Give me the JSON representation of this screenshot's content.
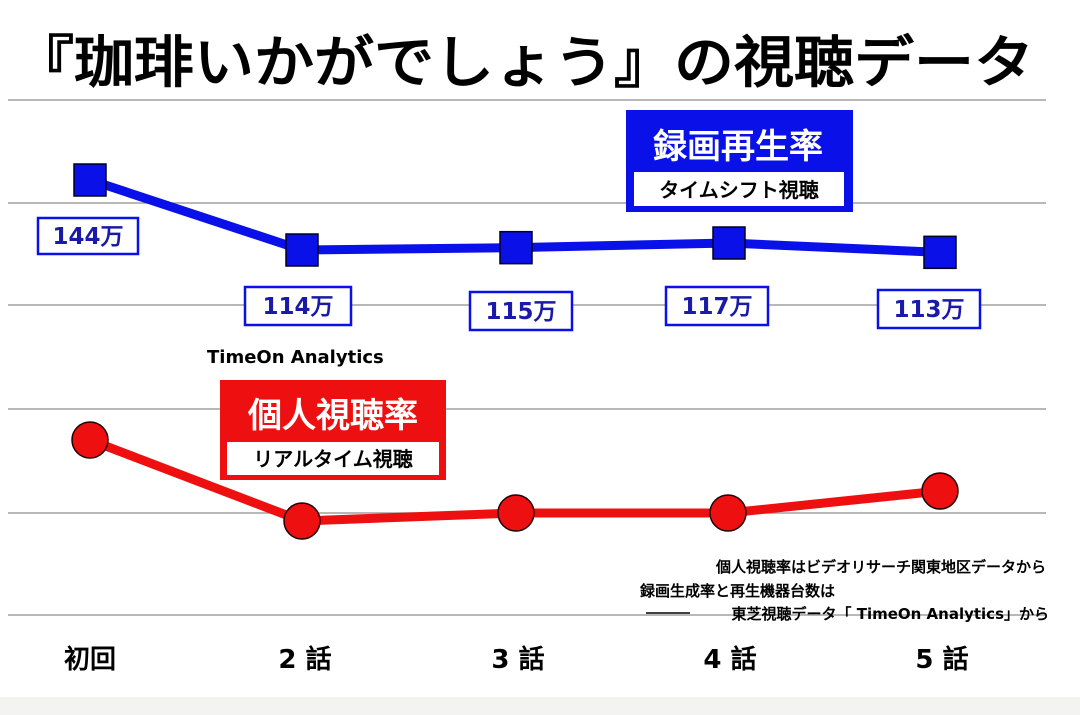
{
  "title": "『珈琲いかがでしょう』の視聴データ",
  "brand_mark": "TimeOn Analytics",
  "legend_recording": {
    "main": "録画再生率",
    "sub": "タイムシフト視聴"
  },
  "legend_personal": {
    "main": "個人視聴率",
    "sub": "リアルタイム視聴"
  },
  "notes": [
    "個人視聴率はビデオリサーチ関東地区データから",
    "録画生成率と再生機器台数は",
    "東芝視聴データ「 TimeOn Analytics」から"
  ],
  "colors": {
    "recording": "#0a10e8",
    "personal": "#ee1010",
    "grid": "#a0a0a0"
  },
  "chart_data": {
    "type": "line",
    "categories": [
      "初回",
      "2 話",
      "3 話",
      "4 話",
      "5 話"
    ],
    "series": [
      {
        "name": "録画再生率",
        "marker": "square",
        "values": [
          144,
          114,
          115,
          117,
          113
        ],
        "labels": [
          "144万",
          "114万",
          "115万",
          "117万",
          "113万"
        ]
      },
      {
        "name": "個人視聴率",
        "marker": "circle",
        "values": null,
        "relative_levels": [
          0.41,
          0.5,
          0.48,
          0.48,
          0.44
        ]
      }
    ],
    "grid": true,
    "y_axis_shown": false
  }
}
